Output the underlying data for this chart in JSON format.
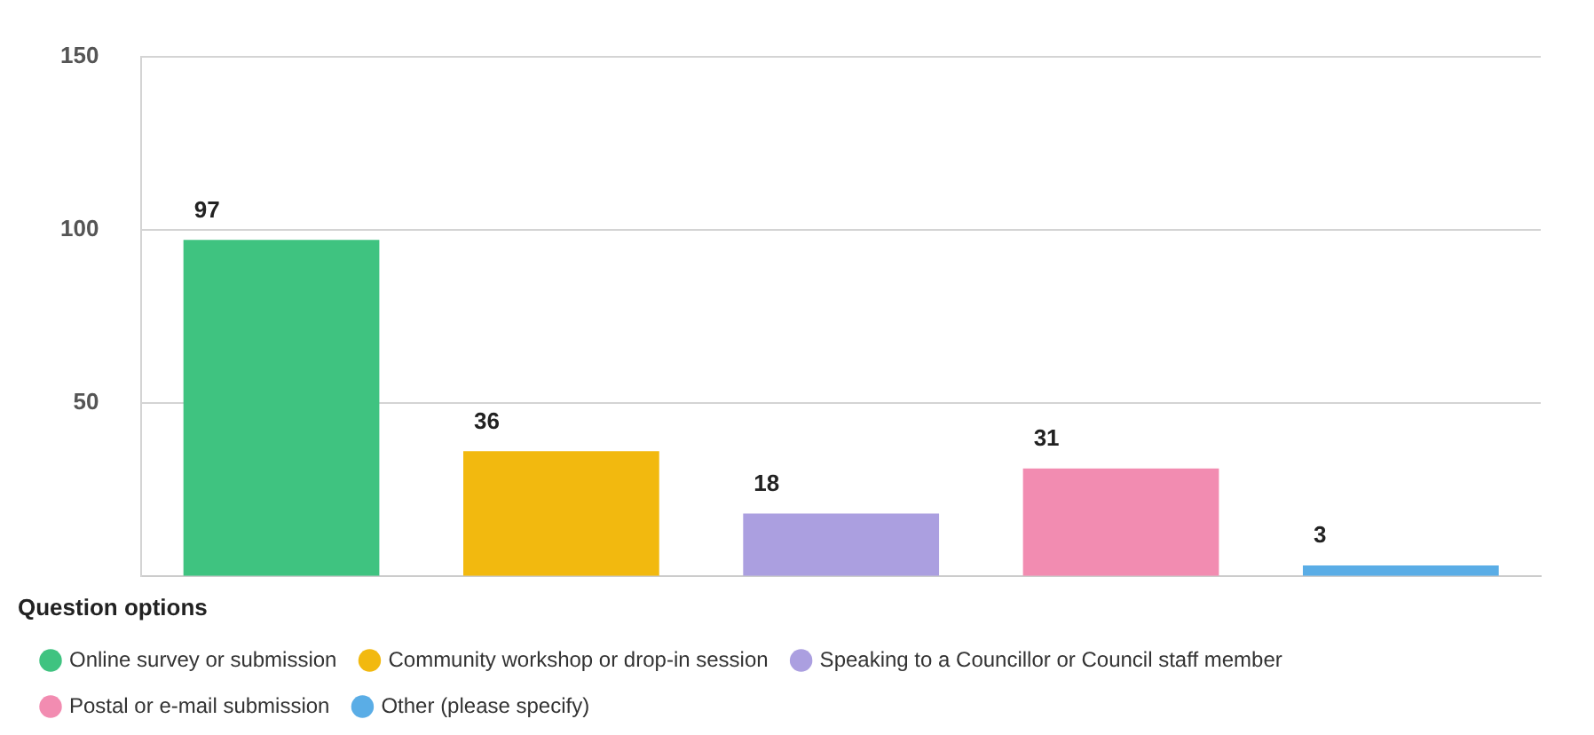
{
  "chart_data": {
    "type": "bar",
    "legend_title": "Question options",
    "categories": [
      null,
      null,
      null,
      null,
      null
    ],
    "series": [
      {
        "name": "Online survey or submission",
        "color": "#3fc380",
        "values": [
          97,
          null,
          null,
          null,
          null
        ]
      },
      {
        "name": "Community workshop or drop-in session",
        "color": "#f2b90f",
        "values": [
          null,
          36,
          null,
          null,
          null
        ]
      },
      {
        "name": "Speaking to a Councillor or Council staff member",
        "color": "#ab9fe0",
        "values": [
          null,
          null,
          18,
          null,
          null
        ]
      },
      {
        "name": "Postal or e-mail submission",
        "color": "#f28cb1",
        "values": [
          null,
          null,
          null,
          31,
          null
        ]
      },
      {
        "name": "Other (please specify)",
        "color": "#5aade6",
        "values": [
          null,
          null,
          null,
          null,
          3
        ]
      }
    ],
    "ylim": [
      0,
      150
    ],
    "yticks": [
      50,
      100,
      150
    ],
    "grid": "y",
    "legend": "bottom left",
    "tick_labels": "y",
    "data_labels": true
  }
}
